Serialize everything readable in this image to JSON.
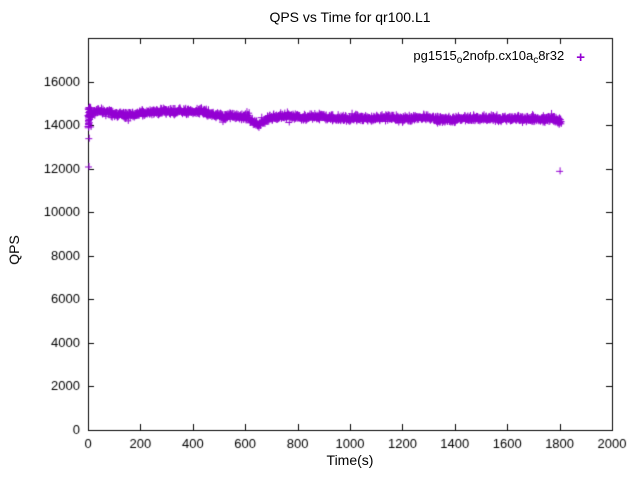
{
  "page": {
    "background": "#ffffff"
  },
  "chart_data": {
    "type": "scatter",
    "title": "QPS vs Time for qr100.L1",
    "xlabel": "Time(s)",
    "ylabel": "QPS",
    "xlim": [
      0,
      2000
    ],
    "ylim": [
      0,
      18000
    ],
    "xticks": [
      0,
      200,
      400,
      600,
      800,
      1000,
      1200,
      1400,
      1600,
      1800,
      2000
    ],
    "yticks": [
      0,
      2000,
      4000,
      6000,
      8000,
      10000,
      12000,
      14000,
      16000
    ],
    "grid": false,
    "legend_position": "top-right-inside",
    "legend": {
      "marker": "+",
      "label_plain": "pg1515_o2nofp.cx10a_c8r32",
      "label_parts": [
        {
          "text": "pg1515"
        },
        {
          "text": "o",
          "sub": true
        },
        {
          "text": "2nofp.cx10a"
        },
        {
          "text": "c",
          "sub": true
        },
        {
          "text": "8r32"
        }
      ]
    },
    "series": [
      {
        "name": "pg1515_o2nofp.cx10a_c8r32",
        "marker": "+",
        "color": "#9400D3",
        "band": {
          "x_start": 0,
          "x_end": 1806,
          "count": 1500,
          "noise": 110,
          "seed": 42,
          "mean_profile": [
            [
              0,
              14450
            ],
            [
              20,
              14600
            ],
            [
              50,
              14650
            ],
            [
              90,
              14550
            ],
            [
              130,
              14450
            ],
            [
              170,
              14500
            ],
            [
              210,
              14550
            ],
            [
              250,
              14600
            ],
            [
              290,
              14650
            ],
            [
              330,
              14600
            ],
            [
              360,
              14650
            ],
            [
              400,
              14600
            ],
            [
              430,
              14650
            ],
            [
              460,
              14550
            ],
            [
              490,
              14450
            ],
            [
              520,
              14400
            ],
            [
              550,
              14450
            ],
            [
              580,
              14400
            ],
            [
              610,
              14350
            ],
            [
              635,
              14100
            ],
            [
              650,
              14000
            ],
            [
              665,
              14150
            ],
            [
              690,
              14300
            ],
            [
              720,
              14400
            ],
            [
              750,
              14450
            ],
            [
              790,
              14400
            ],
            [
              830,
              14350
            ],
            [
              880,
              14400
            ],
            [
              930,
              14350
            ],
            [
              980,
              14300
            ],
            [
              1030,
              14350
            ],
            [
              1080,
              14300
            ],
            [
              1130,
              14350
            ],
            [
              1180,
              14300
            ],
            [
              1230,
              14300
            ],
            [
              1280,
              14350
            ],
            [
              1330,
              14300
            ],
            [
              1380,
              14250
            ],
            [
              1430,
              14300
            ],
            [
              1480,
              14300
            ],
            [
              1530,
              14350
            ],
            [
              1580,
              14300
            ],
            [
              1630,
              14300
            ],
            [
              1680,
              14250
            ],
            [
              1730,
              14300
            ],
            [
              1780,
              14250
            ],
            [
              1806,
              14200
            ]
          ]
        },
        "startup_points": [
          [
            2,
            12100
          ],
          [
            3,
            13400
          ],
          [
            1,
            13900
          ],
          [
            2,
            14100
          ],
          [
            2,
            14350
          ],
          [
            3,
            14600
          ],
          [
            4,
            14750
          ],
          [
            5,
            14500
          ],
          [
            6,
            14650
          ],
          [
            7,
            14400
          ],
          [
            8,
            14550
          ],
          [
            10,
            14700
          ]
        ],
        "startup_scatter": {
          "count": 20,
          "x_min": 0,
          "x_max": 12,
          "y_min": 13900,
          "y_max": 14850,
          "seed": 7
        },
        "outliers": [
          [
            1800,
            11900
          ]
        ]
      }
    ]
  }
}
